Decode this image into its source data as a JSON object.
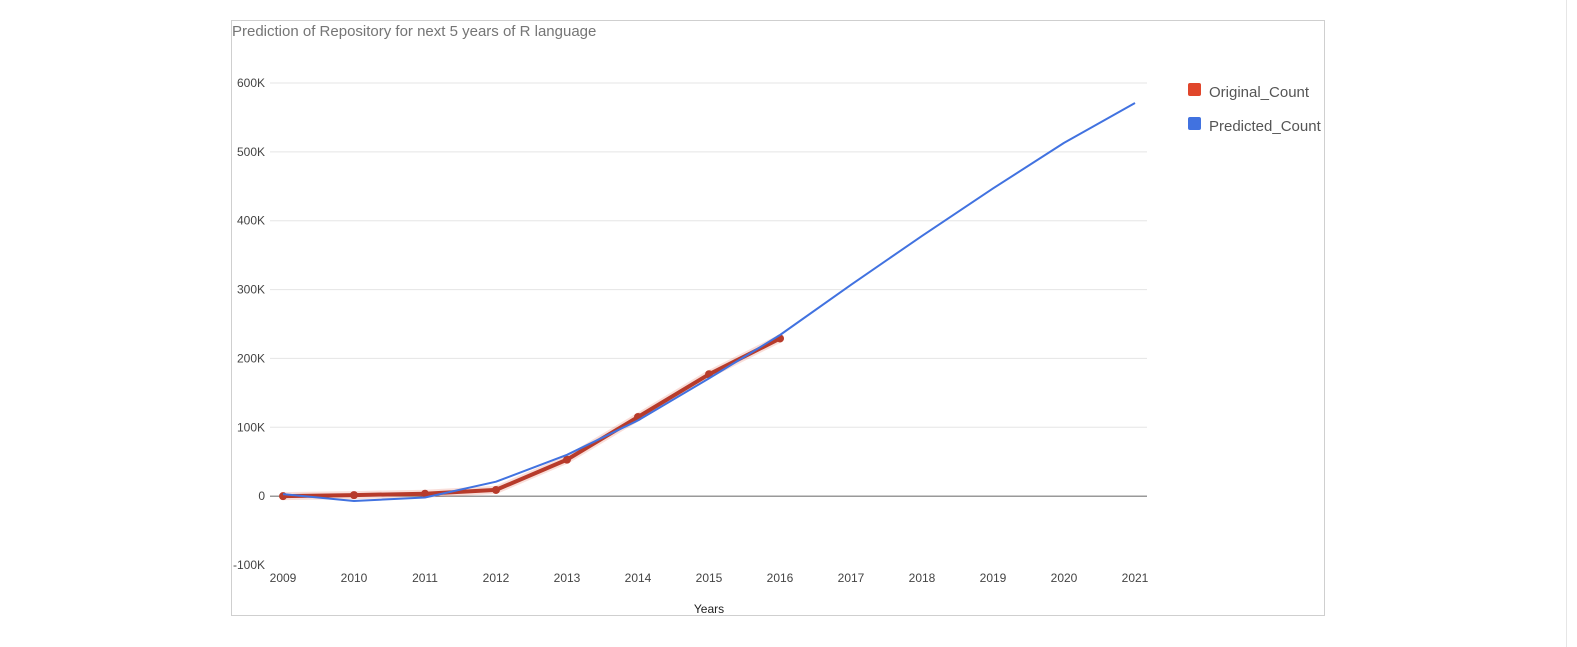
{
  "chart_data": {
    "type": "line",
    "title": "Prediction of Repository for next 5 years of R language",
    "xlabel": "Years",
    "ylabel": "",
    "x": [
      2009,
      2010,
      2011,
      2012,
      2013,
      2014,
      2015,
      2016,
      2017,
      2018,
      2019,
      2020,
      2021
    ],
    "xlim": [
      2009,
      2021
    ],
    "ylim": [
      -100000,
      600000
    ],
    "yticks": [
      -100000,
      0,
      100000,
      200000,
      300000,
      400000,
      500000,
      600000
    ],
    "ytick_labels": [
      "-100K",
      "0",
      "100K",
      "200K",
      "300K",
      "400K",
      "500K",
      "600K"
    ],
    "xtick_labels": [
      "2009",
      "2010",
      "2011",
      "2012",
      "2013",
      "2014",
      "2015",
      "2016",
      "2017",
      "2018",
      "2019",
      "2020",
      "2021"
    ],
    "grid": true,
    "legend_position": "right",
    "series": [
      {
        "name": "Original_Count",
        "color": "#e0462b",
        "line_color": "#b73b2b",
        "markers": true,
        "x": [
          2009,
          2010,
          2011,
          2012,
          2013,
          2014,
          2015,
          2016
        ],
        "values": [
          0,
          1500,
          3500,
          9000,
          53000,
          115000,
          177000,
          229000
        ]
      },
      {
        "name": "Predicted_Count",
        "color": "#4172e0",
        "line_color": "#4172e0",
        "markers": false,
        "x": [
          2009,
          2010,
          2011,
          2012,
          2013,
          2014,
          2015,
          2016,
          2017,
          2018,
          2019,
          2020,
          2021
        ],
        "values": [
          3000,
          -7000,
          -2000,
          21000,
          60000,
          110000,
          171000,
          234000,
          307000,
          378000,
          447000,
          513000,
          571000
        ]
      }
    ]
  }
}
